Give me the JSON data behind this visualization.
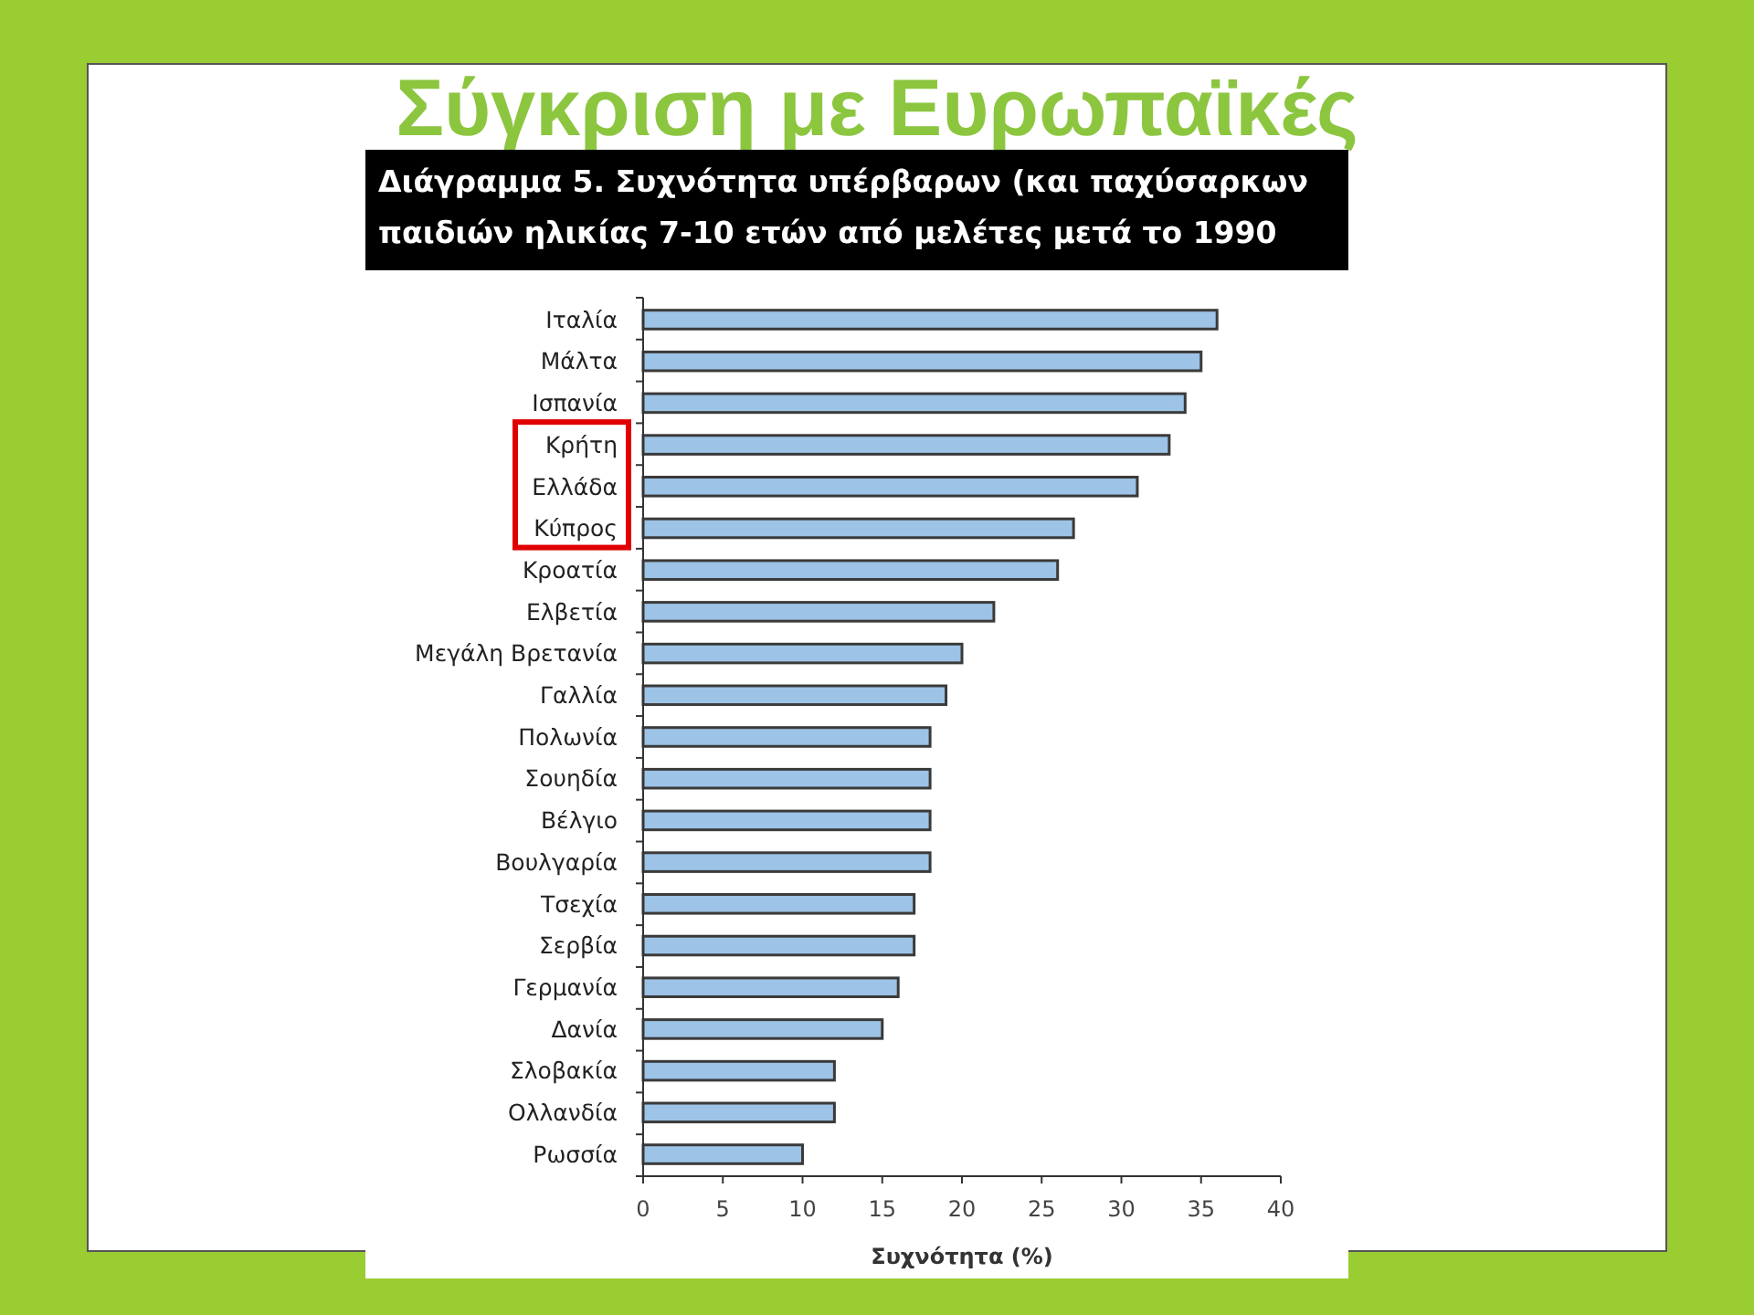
{
  "chart_data": {
    "type": "bar",
    "orientation": "horizontal",
    "title": "Σύγκριση με Ευρωπαϊκές",
    "subtitle": "Διάγραμμα 5. Συχνότητα υπέρβαρων (και παχύσαρκων\nπαιδιών ηλικίας  7-10 ετών από μελέτες μετά το 1990",
    "xlabel": "Συχνότητα (%)",
    "categories": [
      "Ιταλία",
      "Μάλτα",
      "Ισπανία",
      "Κρήτη",
      "Ελλάδα",
      "Κύπρος",
      "Κροατία",
      "Ελβετία",
      "Μεγάλη Βρετανία",
      "Γαλλία",
      "Πολωνία",
      "Σουηδία",
      "Βέλγιο",
      "Βουλγαρία",
      "Τσεχία",
      "Σερβία",
      "Γερμανία",
      "Δανία",
      "Σλοβακία",
      "Ολλανδία",
      "Ρωσσία"
    ],
    "values": [
      36,
      35,
      34,
      33,
      31,
      27,
      26,
      22,
      20,
      19,
      18,
      18,
      18,
      18,
      17,
      17,
      16,
      15,
      12,
      12,
      10
    ],
    "color": "#9dc3e6",
    "xlim": [
      0,
      40
    ],
    "xticks": [
      0,
      5,
      10,
      15,
      20,
      25,
      30,
      35,
      40
    ]
  }
}
